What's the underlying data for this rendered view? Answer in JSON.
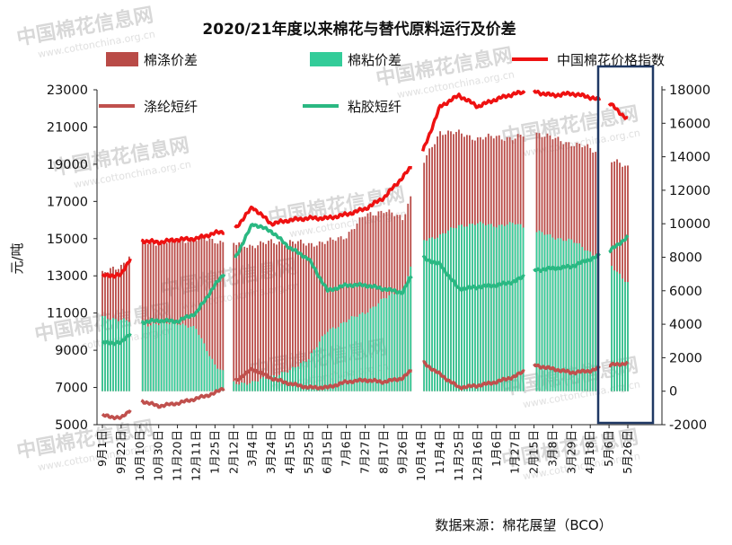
{
  "chart_data": {
    "type": "bar",
    "title": "2020/21年度以来棉花与替代原料运行及价差",
    "ylabel_left": "元/吨",
    "ylim_left": [
      5000,
      23000
    ],
    "yticks_left": [
      "23000",
      "21000",
      "19000",
      "17000",
      "15000",
      "13000",
      "11000",
      "9000",
      "7000",
      "5000"
    ],
    "ylim_right": [
      -2000,
      18000
    ],
    "yticks_right": [
      "18000",
      "16000",
      "14000",
      "12000",
      "10000",
      "8000",
      "6000",
      "4000",
      "2000",
      "0",
      "-2000"
    ],
    "x_tick_labels": [
      "9月1日",
      "9月22日",
      "10月10日",
      "10月30日",
      "11月20日",
      "12月11日",
      "1月25日",
      "2月12日",
      "3月4日",
      "3月24日",
      "4月15日",
      "5月25日",
      "6月15日",
      "7月6日",
      "7月27日",
      "8月17日",
      "9月26日",
      "10月14日",
      "11月4日",
      "11月25日",
      "12月16日",
      "1月6日",
      "1月27日",
      "2月15日",
      "3月8日",
      "3月29日",
      "4月18日",
      "5月6日",
      "5月26日"
    ],
    "legend": [
      {
        "name": "棉涤价差",
        "type": "bar",
        "color": "#b94b47"
      },
      {
        "name": "棉粘价差",
        "type": "bar",
        "color": "#33cc99"
      },
      {
        "name": "中国棉花价格指数",
        "type": "line",
        "color": "#ee1111"
      },
      {
        "name": "涤纶短纤",
        "type": "line",
        "color": "#c0504d"
      },
      {
        "name": "粘胶短纤",
        "type": "line",
        "color": "#2ab882"
      }
    ],
    "series": [
      {
        "name": "中国棉花价格指数",
        "axis": "left",
        "x": [
          0,
          1,
          2,
          3,
          4,
          5,
          6,
          7,
          8,
          9,
          10,
          11,
          12,
          13,
          14,
          15,
          16,
          17,
          18,
          19,
          20,
          21,
          22,
          23,
          24,
          25,
          26,
          27,
          28
        ],
        "values": [
          13000,
          13050,
          14900,
          14800,
          14950,
          15000,
          15300,
          15450,
          16700,
          15800,
          16000,
          16100,
          16100,
          16300,
          16600,
          17200,
          18300,
          19500,
          22100,
          22700,
          22100,
          22500,
          22800,
          22900,
          22700,
          22800,
          22600,
          22300,
          21400
        ]
      },
      {
        "name": "粘胶短纤",
        "axis": "left",
        "x": [
          0,
          1,
          2,
          3,
          4,
          5,
          6,
          7,
          8,
          9,
          10,
          11,
          12,
          13,
          14,
          15,
          16,
          17,
          18,
          19,
          20,
          21,
          22,
          23,
          24,
          25,
          26,
          27,
          28
        ],
        "values": [
          9400,
          9400,
          10500,
          10600,
          10550,
          11000,
          12500,
          13800,
          15800,
          15400,
          14500,
          13900,
          12200,
          12500,
          12500,
          12300,
          12100,
          14000,
          13600,
          12300,
          12400,
          12500,
          12700,
          13300,
          13400,
          13500,
          13900,
          14300,
          15100
        ]
      },
      {
        "name": "涤纶短纤",
        "axis": "left",
        "x": [
          0,
          1,
          2,
          3,
          4,
          5,
          6,
          7,
          8,
          9,
          10,
          11,
          12,
          13,
          14,
          15,
          16,
          17,
          18,
          19,
          20,
          21,
          22,
          23,
          24,
          25,
          26,
          27,
          28
        ],
        "values": [
          5500,
          5350,
          6300,
          6000,
          6150,
          6400,
          6700,
          7300,
          8000,
          7500,
          7200,
          7000,
          7000,
          7300,
          7400,
          7300,
          7500,
          8400,
          7700,
          7000,
          7100,
          7300,
          7600,
          8200,
          8000,
          7800,
          7900,
          8200,
          8300
        ]
      },
      {
        "name": "棉涤价差",
        "axis": "right",
        "x": [
          0,
          1,
          2,
          3,
          4,
          5,
          6,
          7,
          8,
          9,
          10,
          11,
          12,
          13,
          14,
          15,
          16,
          17,
          18,
          19,
          20,
          21,
          22,
          23,
          24,
          25,
          26,
          27,
          28
        ],
        "values": [
          7000,
          7500,
          8900,
          8900,
          9000,
          9100,
          9000,
          8800,
          8700,
          8900,
          8900,
          8800,
          8900,
          9300,
          10500,
          10800,
          10300,
          13400,
          15500,
          15400,
          15100,
          15200,
          15100,
          15500,
          15100,
          14800,
          14500,
          13800,
          13400
        ]
      },
      {
        "name": "棉粘价差",
        "axis": "right",
        "x": [
          0,
          1,
          2,
          3,
          4,
          5,
          6,
          7,
          8,
          9,
          10,
          11,
          12,
          13,
          14,
          15,
          16,
          17,
          18,
          19,
          20,
          21,
          22,
          23,
          24,
          25,
          26,
          27,
          28
        ],
        "values": [
          4400,
          4300,
          4000,
          4000,
          4100,
          3700,
          1600,
          500,
          500,
          900,
          1200,
          2000,
          3600,
          4200,
          4700,
          5500,
          6100,
          9000,
          9300,
          9900,
          10000,
          9900,
          10000,
          9600,
          9200,
          9000,
          8300,
          7600,
          6500
        ]
      }
    ],
    "bar_gaps_after": [
      1,
      6,
      16,
      22,
      26
    ]
  },
  "source_label": "数据来源：棉花展望（BCO）",
  "watermark": {
    "brand": "中国棉花信息网",
    "url": "www.cottonchina.org.cn"
  },
  "highlight_box": {
    "color": "#1f3864"
  }
}
